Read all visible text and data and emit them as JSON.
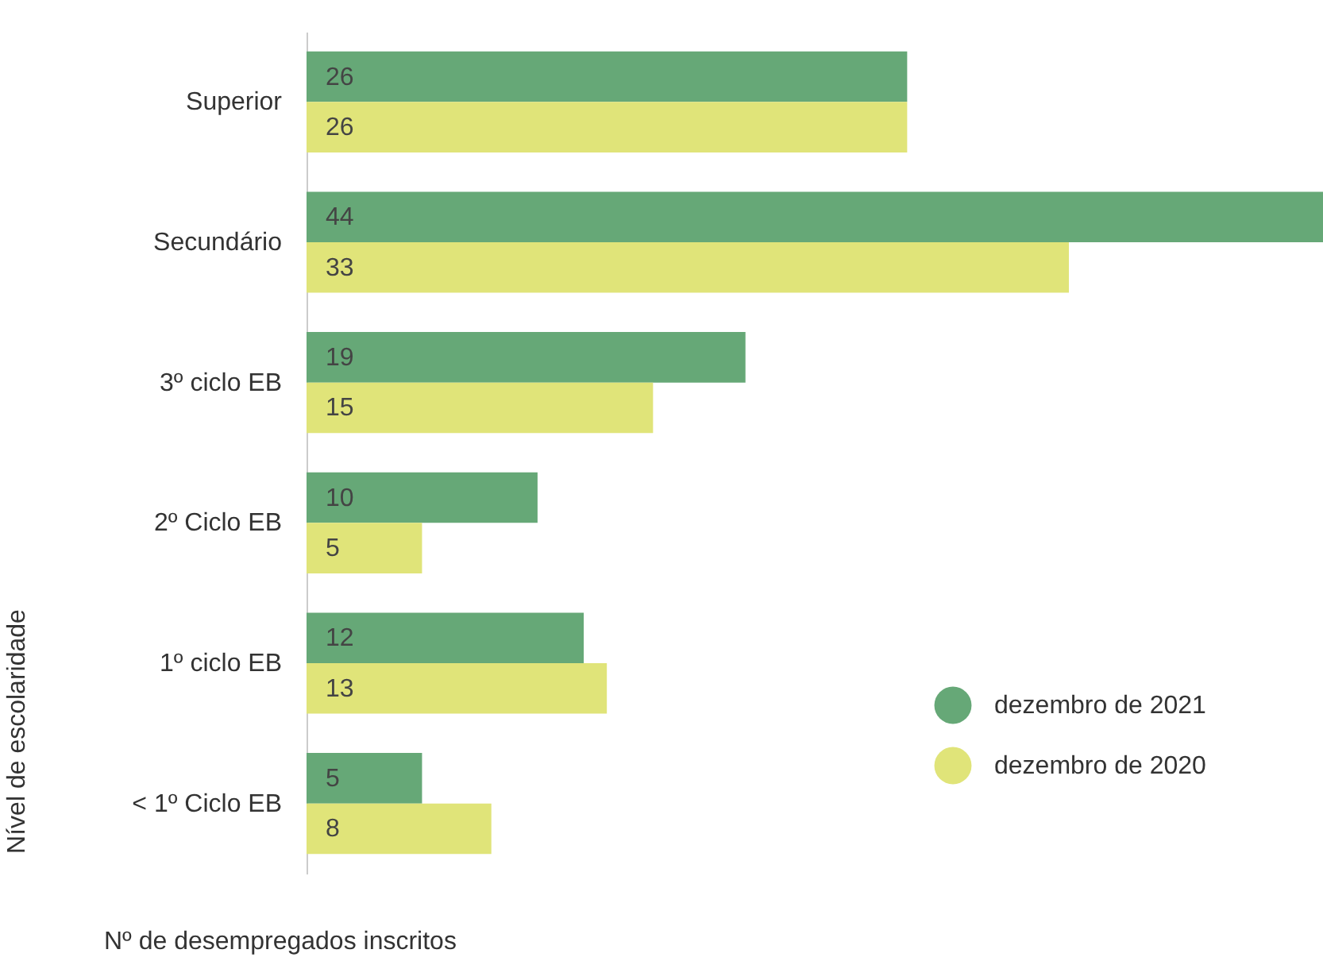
{
  "chart_data": {
    "type": "bar",
    "orientation": "horizontal",
    "xlabel": "Nº de desempregados inscritos",
    "ylabel": "Nível de escolaridade",
    "categories": [
      "Superior",
      "Secundário",
      "3º ciclo EB",
      "2º Ciclo EB",
      "1º ciclo EB",
      "< 1º Ciclo EB"
    ],
    "series": [
      {
        "name": "dezembro de 2021",
        "color": "#66a877",
        "values": [
          26,
          44,
          19,
          10,
          12,
          5
        ]
      },
      {
        "name": "dezembro de 2020",
        "color": "#e0e479",
        "values": [
          26,
          33,
          15,
          5,
          13,
          8
        ]
      }
    ],
    "data_labels": true,
    "legend": "bottom right",
    "grid": false
  }
}
